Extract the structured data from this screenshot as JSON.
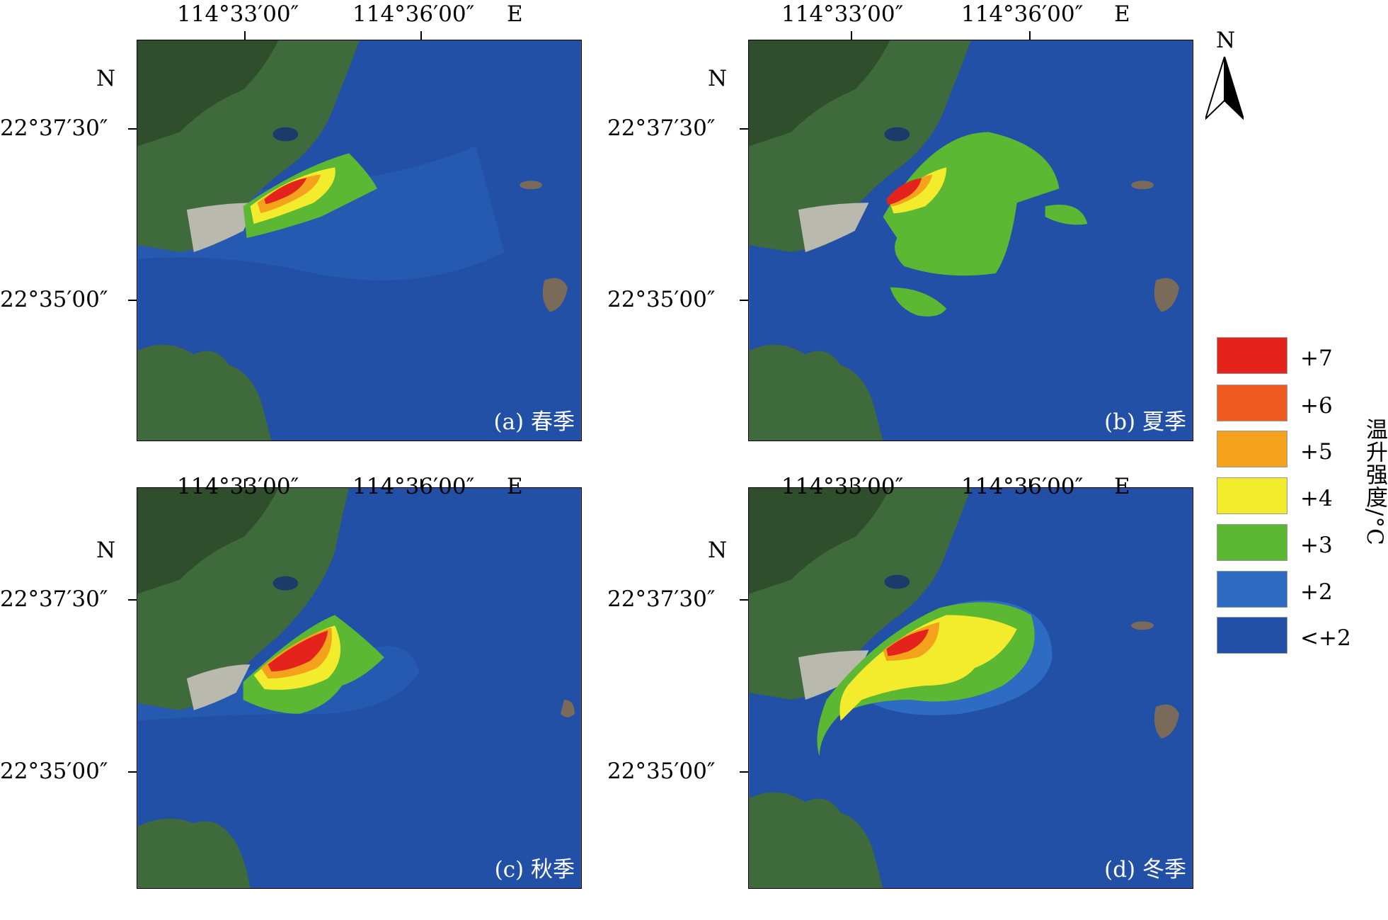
{
  "panels": [
    {
      "id": "a",
      "caption": "(a) 春季"
    },
    {
      "id": "b",
      "caption": "(b) 夏季"
    },
    {
      "id": "c",
      "caption": "(c) 秋季"
    },
    {
      "id": "d",
      "caption": "(d) 冬季"
    }
  ],
  "axes": {
    "lon_labels": [
      "114°33′00″",
      "114°36′00″"
    ],
    "east_label": "E",
    "north_label": "N",
    "lat_labels": [
      "22°37′30″",
      "22°35′00″"
    ]
  },
  "north_arrow": {
    "label": "N"
  },
  "legend": {
    "title": "温升强度/°C",
    "items": [
      {
        "label": "+7",
        "color": "#e4231d"
      },
      {
        "label": "+6",
        "color": "#ef5a1f"
      },
      {
        "label": "+5",
        "color": "#f4a21c"
      },
      {
        "label": "+4",
        "color": "#f2ec2c"
      },
      {
        "label": "+3",
        "color": "#5cb832"
      },
      {
        "label": "+2",
        "color": "#2e6bc2"
      },
      {
        "label": "<+2",
        "color": "#2150a6"
      }
    ]
  }
}
